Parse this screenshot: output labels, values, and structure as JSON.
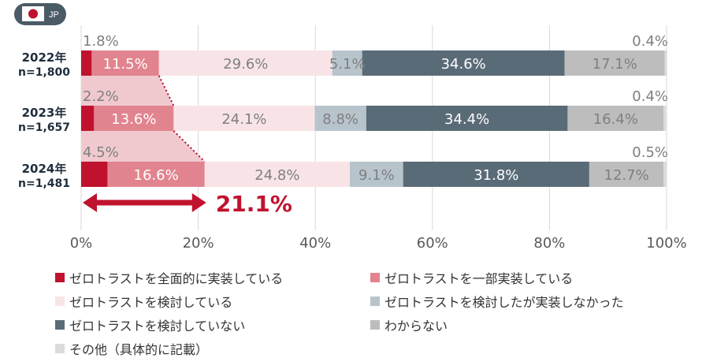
{
  "badge": {
    "label": "JP"
  },
  "chart_data": {
    "type": "bar",
    "orientation": "horizontal-stacked-100",
    "categories": [
      "2022年",
      "2023年",
      "2024年"
    ],
    "sample_sizes": [
      "n=1,800",
      "n=1,657",
      "n=1,481"
    ],
    "series": [
      {
        "name": "ゼロトラストを全面的に実装している",
        "color": "#c0122e",
        "values": [
          1.8,
          2.2,
          4.5
        ],
        "labels": [
          "1.8%",
          "2.2%",
          "4.5%"
        ]
      },
      {
        "name": "ゼロトラストを一部実装している",
        "color": "#e2848f",
        "values": [
          11.5,
          13.6,
          16.6
        ],
        "labels": [
          "11.5%",
          "13.6%",
          "16.6%"
        ]
      },
      {
        "name": "ゼロトラストを検討している",
        "color": "#f8e4e7",
        "values": [
          29.6,
          24.1,
          24.8
        ],
        "labels": [
          "29.6%",
          "24.1%",
          "24.8%"
        ]
      },
      {
        "name": "ゼロトラストを検討したが実装しなかった",
        "color": "#b8c4cc",
        "values": [
          5.1,
          8.8,
          9.1
        ],
        "labels": [
          "5.1%",
          "8.8%",
          "9.1%"
        ]
      },
      {
        "name": "ゼロトラストを検討していない",
        "color": "#5a6b78",
        "values": [
          34.6,
          34.4,
          31.8
        ],
        "labels": [
          "34.6%",
          "34.4%",
          "31.8%"
        ]
      },
      {
        "name": "わからない",
        "color": "#bdbdbd",
        "values": [
          17.1,
          16.4,
          12.7
        ],
        "labels": [
          "17.1%",
          "16.4%",
          "12.7%"
        ]
      },
      {
        "name": "その他（具体的に記載）",
        "color": "#dcdcdc",
        "values": [
          0.4,
          0.4,
          0.5
        ],
        "labels": [
          "0.4%",
          "0.4%",
          "0.5%"
        ]
      }
    ],
    "x_ticks": [
      "0%",
      "20%",
      "40%",
      "60%",
      "80%",
      "100%"
    ],
    "xlim": [
      0,
      100
    ],
    "grid": true,
    "legend_position": "bottom",
    "annotation": {
      "text": "21.1%",
      "from": 0,
      "to": 21.1,
      "color": "#c0122e",
      "connectors": "dotted lines linking the implemented share of each year"
    }
  }
}
